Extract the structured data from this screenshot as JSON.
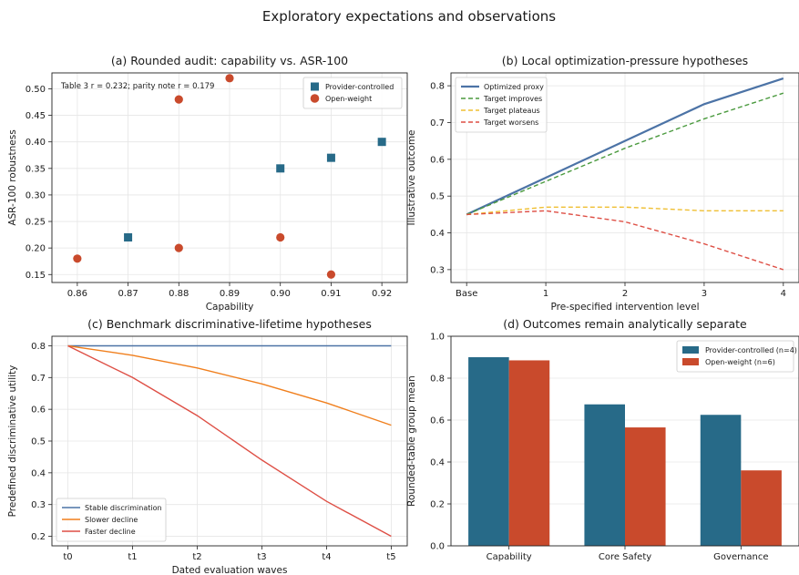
{
  "suptitle": "Exploratory expectations and observations",
  "chart_data": [
    {
      "id": "a",
      "type": "scatter",
      "title": "(a) Rounded audit: capability vs. ASR-100",
      "xlabel": "Capability",
      "ylabel": "ASR-100 robustness",
      "xlim": [
        0.855,
        0.925
      ],
      "ylim": [
        0.135,
        0.53
      ],
      "xticks": [
        "0.86",
        "0.87",
        "0.88",
        "0.89",
        "0.90",
        "0.91",
        "0.92"
      ],
      "yticks": [
        "0.15",
        "0.20",
        "0.25",
        "0.30",
        "0.35",
        "0.40",
        "0.45",
        "0.50"
      ],
      "grid": true,
      "legend": "top-right",
      "annotation": "Table 3 r = 0.232; parity note r = 0.179",
      "series": [
        {
          "name": "Provider-controlled",
          "marker": "square",
          "color": "#276a88",
          "points": [
            [
              0.87,
              0.22
            ],
            [
              0.9,
              0.35
            ],
            [
              0.91,
              0.37
            ],
            [
              0.92,
              0.4
            ]
          ]
        },
        {
          "name": "Open-weight",
          "marker": "circle",
          "color": "#c94a2c",
          "points": [
            [
              0.86,
              0.18
            ],
            [
              0.88,
              0.48
            ],
            [
              0.88,
              0.2
            ],
            [
              0.89,
              0.52
            ],
            [
              0.9,
              0.22
            ],
            [
              0.91,
              0.15
            ]
          ]
        }
      ]
    },
    {
      "id": "b",
      "type": "line",
      "title": "(b) Local optimization-pressure hypotheses",
      "xlabel": "Pre-specified intervention level",
      "ylabel": "Illustrative outcome",
      "categories": [
        "Base",
        "1",
        "2",
        "3",
        "4"
      ],
      "ylim": [
        0.265,
        0.835
      ],
      "yticks": [
        "0.3",
        "0.4",
        "0.5",
        "0.6",
        "0.7",
        "0.8"
      ],
      "grid": true,
      "legend": "top-left",
      "series": [
        {
          "name": "Optimized proxy",
          "color": "#4c73a6",
          "dash": "solid",
          "values": [
            0.45,
            0.55,
            0.65,
            0.75,
            0.82
          ]
        },
        {
          "name": "Target improves",
          "color": "#4a9a3e",
          "dash": "dashed",
          "values": [
            0.45,
            0.54,
            0.63,
            0.71,
            0.78
          ]
        },
        {
          "name": "Target plateaus",
          "color": "#efbf32",
          "dash": "dashed",
          "values": [
            0.45,
            0.47,
            0.47,
            0.46,
            0.46
          ]
        },
        {
          "name": "Target worsens",
          "color": "#de4f45",
          "dash": "dashed",
          "values": [
            0.45,
            0.46,
            0.43,
            0.37,
            0.3
          ]
        }
      ]
    },
    {
      "id": "c",
      "type": "line",
      "title": "(c) Benchmark discriminative-lifetime hypotheses",
      "xlabel": "Dated evaluation waves",
      "ylabel": "Predefined discriminative utility",
      "categories": [
        "t0",
        "t1",
        "t2",
        "t3",
        "t4",
        "t5"
      ],
      "ylim": [
        0.17,
        0.83
      ],
      "yticks": [
        "0.2",
        "0.3",
        "0.4",
        "0.5",
        "0.6",
        "0.7",
        "0.8"
      ],
      "grid": true,
      "legend": "bottom-left",
      "series": [
        {
          "name": "Stable discrimination",
          "color": "#4c73a6",
          "dash": "solid",
          "values": [
            0.8,
            0.8,
            0.8,
            0.8,
            0.8,
            0.8
          ]
        },
        {
          "name": "Slower decline",
          "color": "#f07f1d",
          "dash": "solid",
          "values": [
            0.8,
            0.77,
            0.73,
            0.68,
            0.62,
            0.55
          ]
        },
        {
          "name": "Faster decline",
          "color": "#de4f45",
          "dash": "solid",
          "values": [
            0.8,
            0.7,
            0.58,
            0.44,
            0.31,
            0.2
          ]
        }
      ]
    },
    {
      "id": "d",
      "type": "bar",
      "title": "(d) Outcomes remain analytically separate",
      "xlabel": "",
      "ylabel": "Rounded-table group mean",
      "categories": [
        "Capability",
        "Core Safety",
        "Governance"
      ],
      "ylim": [
        0,
        1.0
      ],
      "yticks": [
        "0.0",
        "0.2",
        "0.4",
        "0.6",
        "0.8",
        "1.0"
      ],
      "grid": true,
      "legend": "top-right",
      "series": [
        {
          "name": "Provider-controlled (n=4)",
          "color": "#276a88",
          "values": [
            0.9,
            0.675,
            0.625
          ]
        },
        {
          "name": "Open-weight (n=6)",
          "color": "#c94a2c",
          "values": [
            0.885,
            0.565,
            0.36
          ]
        }
      ]
    }
  ]
}
